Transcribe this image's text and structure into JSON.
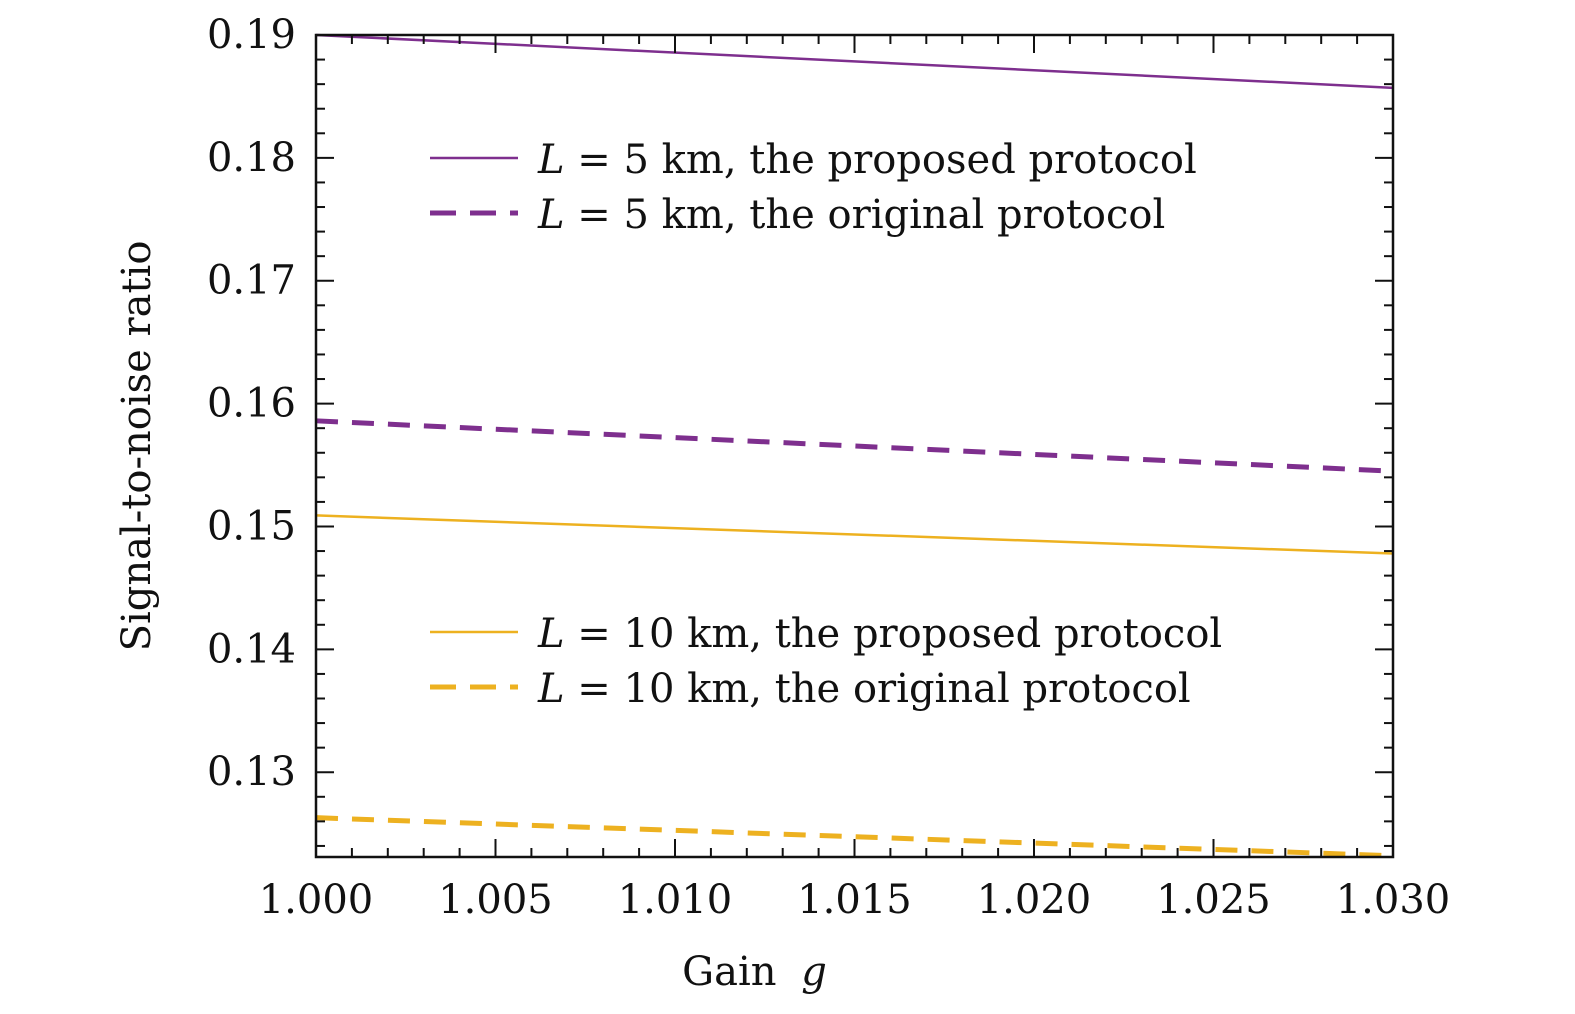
{
  "chart_data": {
    "type": "line",
    "title": "",
    "xlabel": "Gain",
    "xlabel_var": "g",
    "ylabel": "Signal-to-noise ratio",
    "xlim": [
      1.0,
      1.03
    ],
    "ylim": [
      0.1231,
      0.19
    ],
    "x_ticks": [
      "1.000",
      "1.005",
      "1.010",
      "1.015",
      "1.020",
      "1.025",
      "1.030"
    ],
    "y_ticks": [
      "0.19",
      "0.18",
      "0.17",
      "0.16",
      "0.15",
      "0.14",
      "0.13"
    ],
    "y_tick_values": [
      0.19,
      0.18,
      0.17,
      0.16,
      0.15,
      0.14,
      0.13
    ],
    "x_tick_values": [
      1.0,
      1.005,
      1.01,
      1.015,
      1.02,
      1.025,
      1.03
    ],
    "series": [
      {
        "name": "L = 5 km, the proposed protocol",
        "var": "L",
        "rest": " = 5 km, the proposed protocol",
        "color": "#7e2f8e",
        "style": "solid",
        "x": [
          1.0,
          1.03
        ],
        "values": [
          0.19,
          0.1857
        ]
      },
      {
        "name": "L = 5 km, the original protocol",
        "var": "L",
        "rest": " = 5 km, the original protocol",
        "color": "#7e2f8e",
        "style": "dashed",
        "x": [
          1.0,
          1.03
        ],
        "values": [
          0.1586,
          0.1545
        ]
      },
      {
        "name": "L = 10 km, the proposed protocol",
        "var": "L",
        "rest": " = 10 km, the proposed protocol",
        "color": "#edb120",
        "style": "solid",
        "x": [
          1.0,
          1.03
        ],
        "values": [
          0.1509,
          0.1478
        ]
      },
      {
        "name": "L = 10 km, the original protocol",
        "var": "L",
        "rest": " = 10 km, the original protocol",
        "color": "#edb120",
        "style": "dashed",
        "x": [
          1.0,
          1.03
        ],
        "values": [
          0.1263,
          0.1232
        ]
      }
    ],
    "legend_groups": [
      "upper",
      "lower"
    ]
  }
}
